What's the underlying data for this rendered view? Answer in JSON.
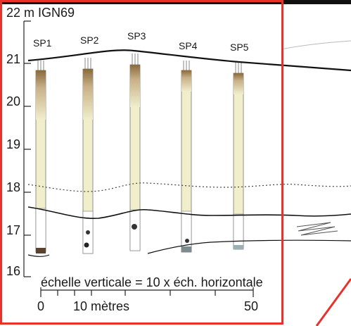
{
  "axis": {
    "unit_label": "22 m IGN69",
    "y_ticks": [
      "21",
      "20",
      "19",
      "18",
      "17",
      "16"
    ]
  },
  "cores": [
    "SP1",
    "SP2",
    "SP3",
    "SP4",
    "SP5"
  ],
  "scale": {
    "note": "échelle verticale = 10 x éch. horizontale",
    "tick_0": "0",
    "tick_10": "10 mètres",
    "tick_50": "50"
  },
  "colors": {
    "highlight_frame": "#e8312a",
    "core_fill": "#f0eecb",
    "core_top": "#b89a6a",
    "ground_line": "#111111"
  }
}
